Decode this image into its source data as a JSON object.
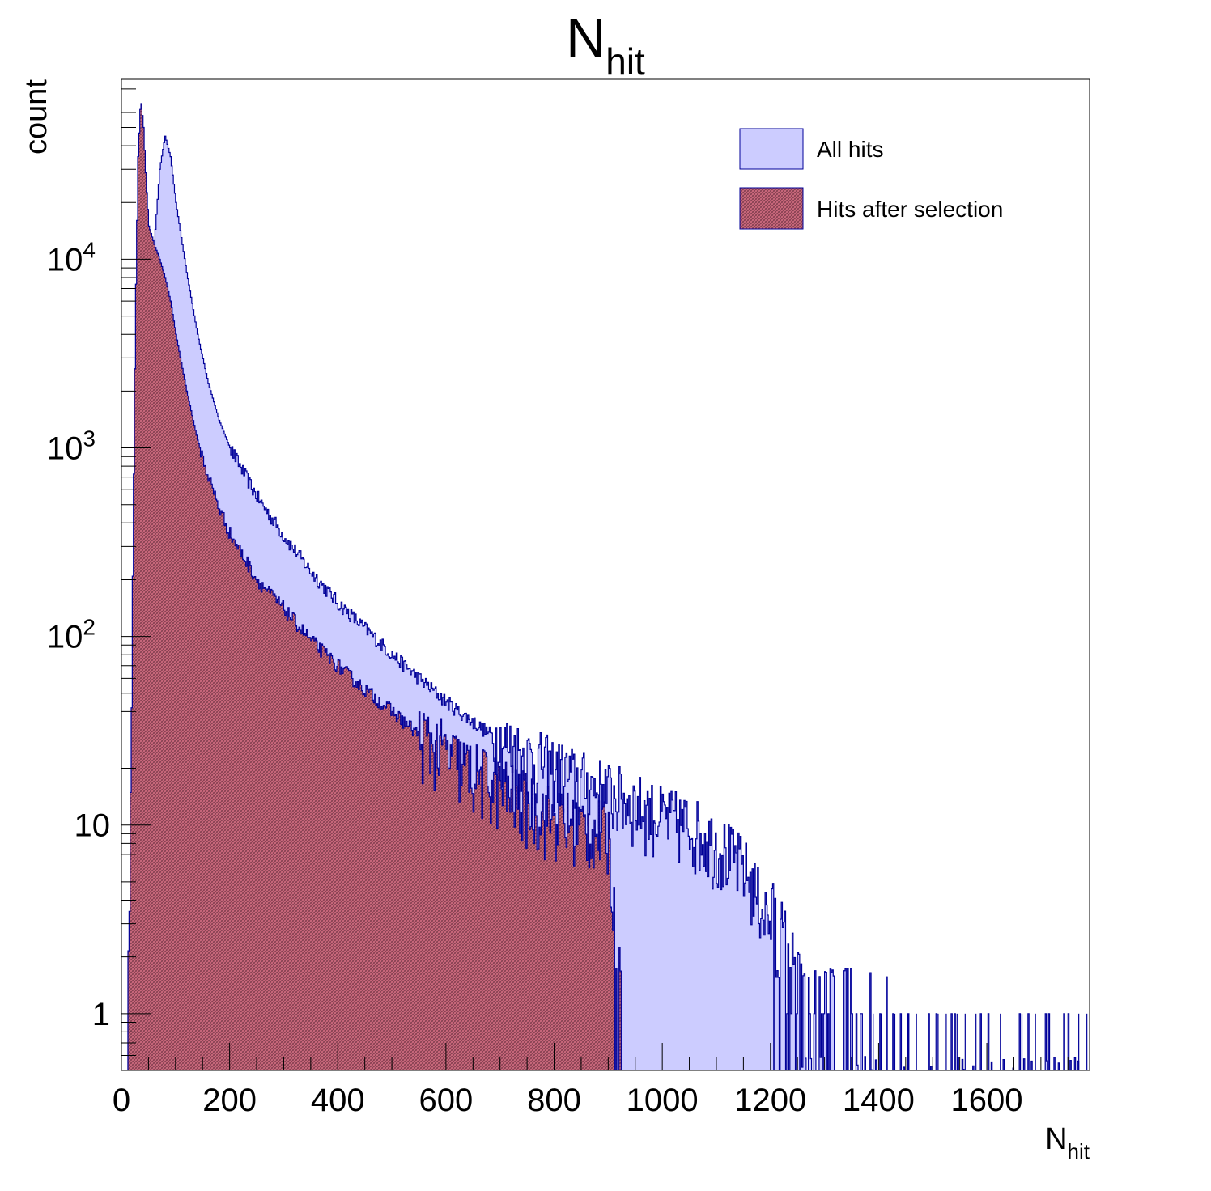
{
  "chart_data": {
    "type": "area",
    "title": {
      "main": "N",
      "sub": "hit"
    },
    "xlabel": {
      "main": "N",
      "sub": "hit"
    },
    "ylabel": "count",
    "xlim": [
      0,
      1790
    ],
    "ylim": [
      0.5,
      90000
    ],
    "yscale": "log",
    "grid": false,
    "legend_position": "top-right",
    "x_ticks": [
      "0",
      "200",
      "400",
      "600",
      "800",
      "1000",
      "1200",
      "1400",
      "1600"
    ],
    "y_ticks": [
      {
        "label": "1",
        "value": 1
      },
      {
        "label": "10",
        "value": 10
      },
      {
        "label": "10^2",
        "value": 100
      },
      {
        "label": "10^3",
        "value": 1000
      },
      {
        "label": "10^4",
        "value": 10000
      }
    ],
    "series": [
      {
        "name": "All hits",
        "fill": "#ccccff",
        "line": "#000099",
        "pattern": "solid",
        "x": [
          10,
          20,
          30,
          40,
          50,
          60,
          70,
          80,
          90,
          100,
          120,
          140,
          160,
          180,
          200,
          250,
          300,
          350,
          400,
          450,
          500,
          550,
          600,
          650,
          700,
          750,
          800,
          850,
          900,
          950,
          1000,
          1050,
          1100,
          1150,
          1200,
          1230,
          1260,
          1300,
          1350,
          1400,
          1500,
          1600,
          1700,
          1780
        ],
        "y": [
          0.5,
          3,
          30,
          300,
          2500,
          12000,
          30000,
          45000,
          35000,
          20000,
          8500,
          4000,
          2200,
          1400,
          1000,
          550,
          340,
          220,
          150,
          110,
          80,
          60,
          45,
          35,
          28,
          23,
          20,
          17,
          15,
          13,
          11,
          10,
          8,
          6,
          3,
          2,
          1,
          1,
          1,
          1,
          0.5,
          0.5,
          0.5,
          0.5
        ]
      },
      {
        "name": "Hits after selection",
        "fill": "#cc6677",
        "line": "#000099",
        "pattern": "crosshatch",
        "x": [
          10,
          15,
          20,
          25,
          30,
          35,
          40,
          45,
          50,
          60,
          70,
          80,
          90,
          100,
          120,
          140,
          160,
          180,
          200,
          250,
          300,
          350,
          400,
          450,
          500,
          550,
          600,
          650,
          700,
          750,
          800,
          850,
          900,
          915,
          925,
          930
        ],
        "y": [
          0.5,
          5,
          200,
          5000,
          35000,
          72000,
          50000,
          25000,
          15000,
          12000,
          10000,
          8000,
          6000,
          4000,
          2000,
          1100,
          700,
          480,
          350,
          200,
          140,
          95,
          70,
          52,
          40,
          30,
          24,
          19,
          16,
          13,
          11,
          10,
          9,
          2,
          1,
          0.5
        ]
      }
    ]
  }
}
